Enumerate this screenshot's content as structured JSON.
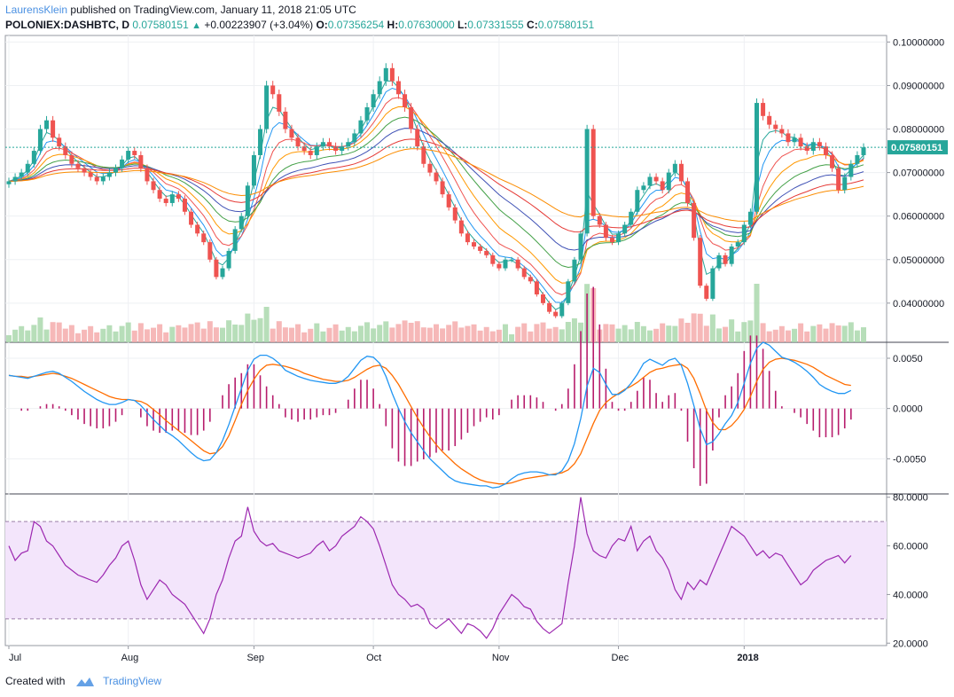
{
  "header": {
    "author": "LaurensKlein",
    "published_text": "published on TradingView.com, January 11, 2018 21:05 UTC",
    "symbol": "POLONIEX:DASHBTC, D",
    "last": "0.07580151",
    "change_arrow": "▲",
    "change": "+0.00223907 (+3.04%)",
    "o_label": "O:",
    "o_value": "0.07356254",
    "h_label": "H:",
    "h_value": "0.07630000",
    "l_label": "L:",
    "l_value": "0.07331555",
    "c_label": "C:",
    "c_value": "0.07580151"
  },
  "footer": {
    "created_with": "Created with",
    "brand": "TradingView",
    "logo_icon": "tradingview-logo-icon"
  },
  "colors": {
    "up": "#26a69a",
    "down": "#ef5350",
    "macd": "#2196f3",
    "signal": "#ff6d00",
    "hist": "#b71c6c",
    "rsi": "#9c27b0",
    "rsi_band": "#f3e5fb"
  },
  "chart_data": [
    {
      "type": "candlestick",
      "panel": "price",
      "x_tick_labels": [
        "Jul",
        "Aug",
        "Sep",
        "Oct",
        "Nov",
        "Dec",
        "2018"
      ],
      "y_tick_labels": [
        "0.10000000",
        "0.09000000",
        "0.08000000",
        "0.07000000",
        "0.06000000",
        "0.05000000",
        "0.04000000"
      ],
      "ylim": [
        0.031,
        0.1015
      ],
      "last_price_label": "0.07580151",
      "closes": [
        0.068,
        0.069,
        0.07,
        0.072,
        0.075,
        0.08,
        0.082,
        0.078,
        0.076,
        0.074,
        0.072,
        0.071,
        0.07,
        0.069,
        0.068,
        0.069,
        0.07,
        0.071,
        0.073,
        0.075,
        0.074,
        0.071,
        0.068,
        0.066,
        0.064,
        0.063,
        0.065,
        0.064,
        0.061,
        0.058,
        0.056,
        0.054,
        0.05,
        0.046,
        0.048,
        0.052,
        0.057,
        0.06,
        0.067,
        0.074,
        0.08,
        0.09,
        0.088,
        0.084,
        0.08,
        0.078,
        0.076,
        0.075,
        0.074,
        0.076,
        0.077,
        0.076,
        0.075,
        0.076,
        0.077,
        0.079,
        0.082,
        0.085,
        0.088,
        0.091,
        0.094,
        0.091,
        0.088,
        0.085,
        0.08,
        0.076,
        0.072,
        0.07,
        0.068,
        0.065,
        0.062,
        0.059,
        0.056,
        0.054,
        0.053,
        0.052,
        0.051,
        0.049,
        0.048,
        0.05,
        0.05,
        0.048,
        0.046,
        0.045,
        0.042,
        0.04,
        0.038,
        0.037,
        0.04,
        0.045,
        0.05,
        0.056,
        0.08,
        0.06,
        0.058,
        0.055,
        0.054,
        0.056,
        0.058,
        0.061,
        0.066,
        0.067,
        0.069,
        0.068,
        0.066,
        0.07,
        0.072,
        0.068,
        0.063,
        0.055,
        0.044,
        0.041,
        0.048,
        0.051,
        0.049,
        0.053,
        0.054,
        0.058,
        0.061,
        0.086,
        0.083,
        0.081,
        0.08,
        0.079,
        0.077,
        0.078,
        0.076,
        0.075,
        0.077,
        0.076,
        0.074,
        0.071,
        0.066,
        0.069,
        0.072,
        0.074,
        0.0758
      ],
      "volume_note": "volume histogram shown along bottom of price panel"
    },
    {
      "type": "line",
      "panel": "macd",
      "y_tick_labels": [
        "0.0050",
        "0.0000",
        "-0.0050"
      ],
      "ylim": [
        -0.0085,
        0.0065
      ],
      "series": [
        {
          "values": [
            0.0033,
            0.0032,
            0.0031,
            0.003,
            0.0032,
            0.0034,
            0.0036,
            0.0037,
            0.0035,
            0.0031,
            0.0027,
            0.0022,
            0.0017,
            0.0013,
            0.0009,
            0.0006,
            0.0004,
            0.0004,
            0.0006,
            0.0009,
            0.0008,
            0.0003,
            -0.0004,
            -0.0011,
            -0.0017,
            -0.0023,
            -0.0027,
            -0.0032,
            -0.0038,
            -0.0044,
            -0.0049,
            -0.0052,
            -0.0051,
            -0.0044,
            -0.0032,
            -0.0016,
            0.0002,
            0.002,
            0.0038,
            0.0049,
            0.0053,
            0.0053,
            0.005,
            0.0045,
            0.0038,
            0.0035,
            0.0032,
            0.003,
            0.0028,
            0.0027,
            0.0026,
            0.0025,
            0.0025,
            0.0027,
            0.0032,
            0.004,
            0.0048,
            0.0052,
            0.0051,
            0.0045,
            0.0032,
            0.0015,
            0.0,
            -0.0013,
            -0.0024,
            -0.0033,
            -0.0042,
            -0.005,
            -0.0056,
            -0.0062,
            -0.0068,
            -0.0072,
            -0.0074,
            -0.0075,
            -0.0076,
            -0.0077,
            -0.0077,
            -0.0079,
            -0.0078,
            -0.0075,
            -0.007,
            -0.0066,
            -0.0064,
            -0.0063,
            -0.0063,
            -0.0064,
            -0.0066,
            -0.0066,
            -0.0062,
            -0.0052,
            -0.0035,
            -0.001,
            0.0022,
            0.004,
            0.0036,
            0.0024,
            0.0014,
            0.0014,
            0.0018,
            0.0025,
            0.0034,
            0.0045,
            0.0049,
            0.0046,
            0.0043,
            0.0048,
            0.005,
            0.0043,
            0.0025,
            0.0003,
            -0.002,
            -0.0036,
            -0.0033,
            -0.0025,
            -0.0015,
            -0.0007,
            0.0006,
            0.0025,
            0.0045,
            0.006,
            0.0066,
            0.0063,
            0.0057,
            0.0051,
            0.0049,
            0.0046,
            0.0042,
            0.0037,
            0.0031,
            0.0024,
            0.002,
            0.0017,
            0.0015,
            0.0015,
            0.0018
          ]
        },
        {
          "values": [
            0.0033,
            0.0032,
            0.0032,
            0.0031,
            0.0032,
            0.0033,
            0.0034,
            0.0035,
            0.0034,
            0.0032,
            0.003,
            0.0027,
            0.0024,
            0.0021,
            0.0018,
            0.0015,
            0.0012,
            0.001,
            0.0009,
            0.0009,
            0.0008,
            0.0007,
            0.0004,
            -0.0001,
            -0.0006,
            -0.0012,
            -0.0017,
            -0.0022,
            -0.0027,
            -0.0032,
            -0.0037,
            -0.0042,
            -0.0045,
            -0.0044,
            -0.0038,
            -0.0027,
            -0.0012,
            0.0004,
            0.0018,
            0.0029,
            0.0038,
            0.0043,
            0.0044,
            0.0043,
            0.0042,
            0.004,
            0.0038,
            0.0035,
            0.0033,
            0.0031,
            0.0029,
            0.0028,
            0.0027,
            0.0027,
            0.0028,
            0.0031,
            0.0035,
            0.0039,
            0.0042,
            0.0043,
            0.004,
            0.0033,
            0.0024,
            0.0013,
            0.0002,
            -0.0009,
            -0.0019,
            -0.0028,
            -0.0036,
            -0.0043,
            -0.0049,
            -0.0055,
            -0.006,
            -0.0064,
            -0.0068,
            -0.0071,
            -0.0073,
            -0.0074,
            -0.0075,
            -0.0075,
            -0.0074,
            -0.0072,
            -0.007,
            -0.0069,
            -0.0068,
            -0.0067,
            -0.0066,
            -0.0065,
            -0.0064,
            -0.0061,
            -0.0055,
            -0.0045,
            -0.003,
            -0.0015,
            -0.0002,
            0.0006,
            0.0011,
            0.0015,
            0.0019,
            0.0022,
            0.0026,
            0.0031,
            0.0036,
            0.0039,
            0.004,
            0.0042,
            0.0043,
            0.0044,
            0.004,
            0.003,
            0.0015,
            -0.0002,
            -0.0014,
            -0.0021,
            -0.0021,
            -0.0017,
            -0.001,
            -0.0001,
            0.0012,
            0.0027,
            0.0039,
            0.0046,
            0.0049,
            0.005,
            0.0049,
            0.0048,
            0.0046,
            0.0044,
            0.0041,
            0.0037,
            0.0033,
            0.003,
            0.0027,
            0.0024,
            0.0023
          ]
        }
      ],
      "histogram_note": "MACD histogram (difference) drawn as bars around zero"
    },
    {
      "type": "line",
      "panel": "rsi",
      "y_tick_labels": [
        "80.0000",
        "60.0000",
        "40.0000",
        "20.0000"
      ],
      "ylim": [
        19,
        81
      ],
      "band": [
        30,
        70
      ],
      "series": [
        {
          "values": [
            60,
            54,
            57,
            58,
            70,
            68,
            62,
            60,
            56,
            52,
            50,
            48,
            47,
            46,
            45,
            48,
            52,
            55,
            60,
            62,
            54,
            44,
            38,
            42,
            46,
            44,
            40,
            38,
            36,
            32,
            28,
            24,
            30,
            40,
            46,
            55,
            62,
            64,
            76,
            66,
            62,
            60,
            61,
            58,
            57,
            56,
            55,
            56,
            57,
            60,
            62,
            58,
            60,
            64,
            66,
            68,
            72,
            70,
            67,
            60,
            52,
            44,
            40,
            38,
            35,
            36,
            34,
            28,
            26,
            28,
            30,
            27,
            24,
            28,
            27,
            25,
            22,
            26,
            32,
            36,
            40,
            38,
            35,
            34,
            29,
            26,
            24,
            26,
            28,
            45,
            60,
            80,
            65,
            58,
            56,
            55,
            60,
            63,
            62,
            68,
            58,
            62,
            64,
            58,
            55,
            50,
            42,
            38,
            45,
            42,
            46,
            44,
            50,
            56,
            62,
            68,
            66,
            64,
            60,
            56,
            58,
            55,
            57,
            56,
            52,
            48,
            44,
            46,
            50,
            52,
            54,
            55,
            56,
            53,
            56
          ]
        }
      ]
    }
  ]
}
